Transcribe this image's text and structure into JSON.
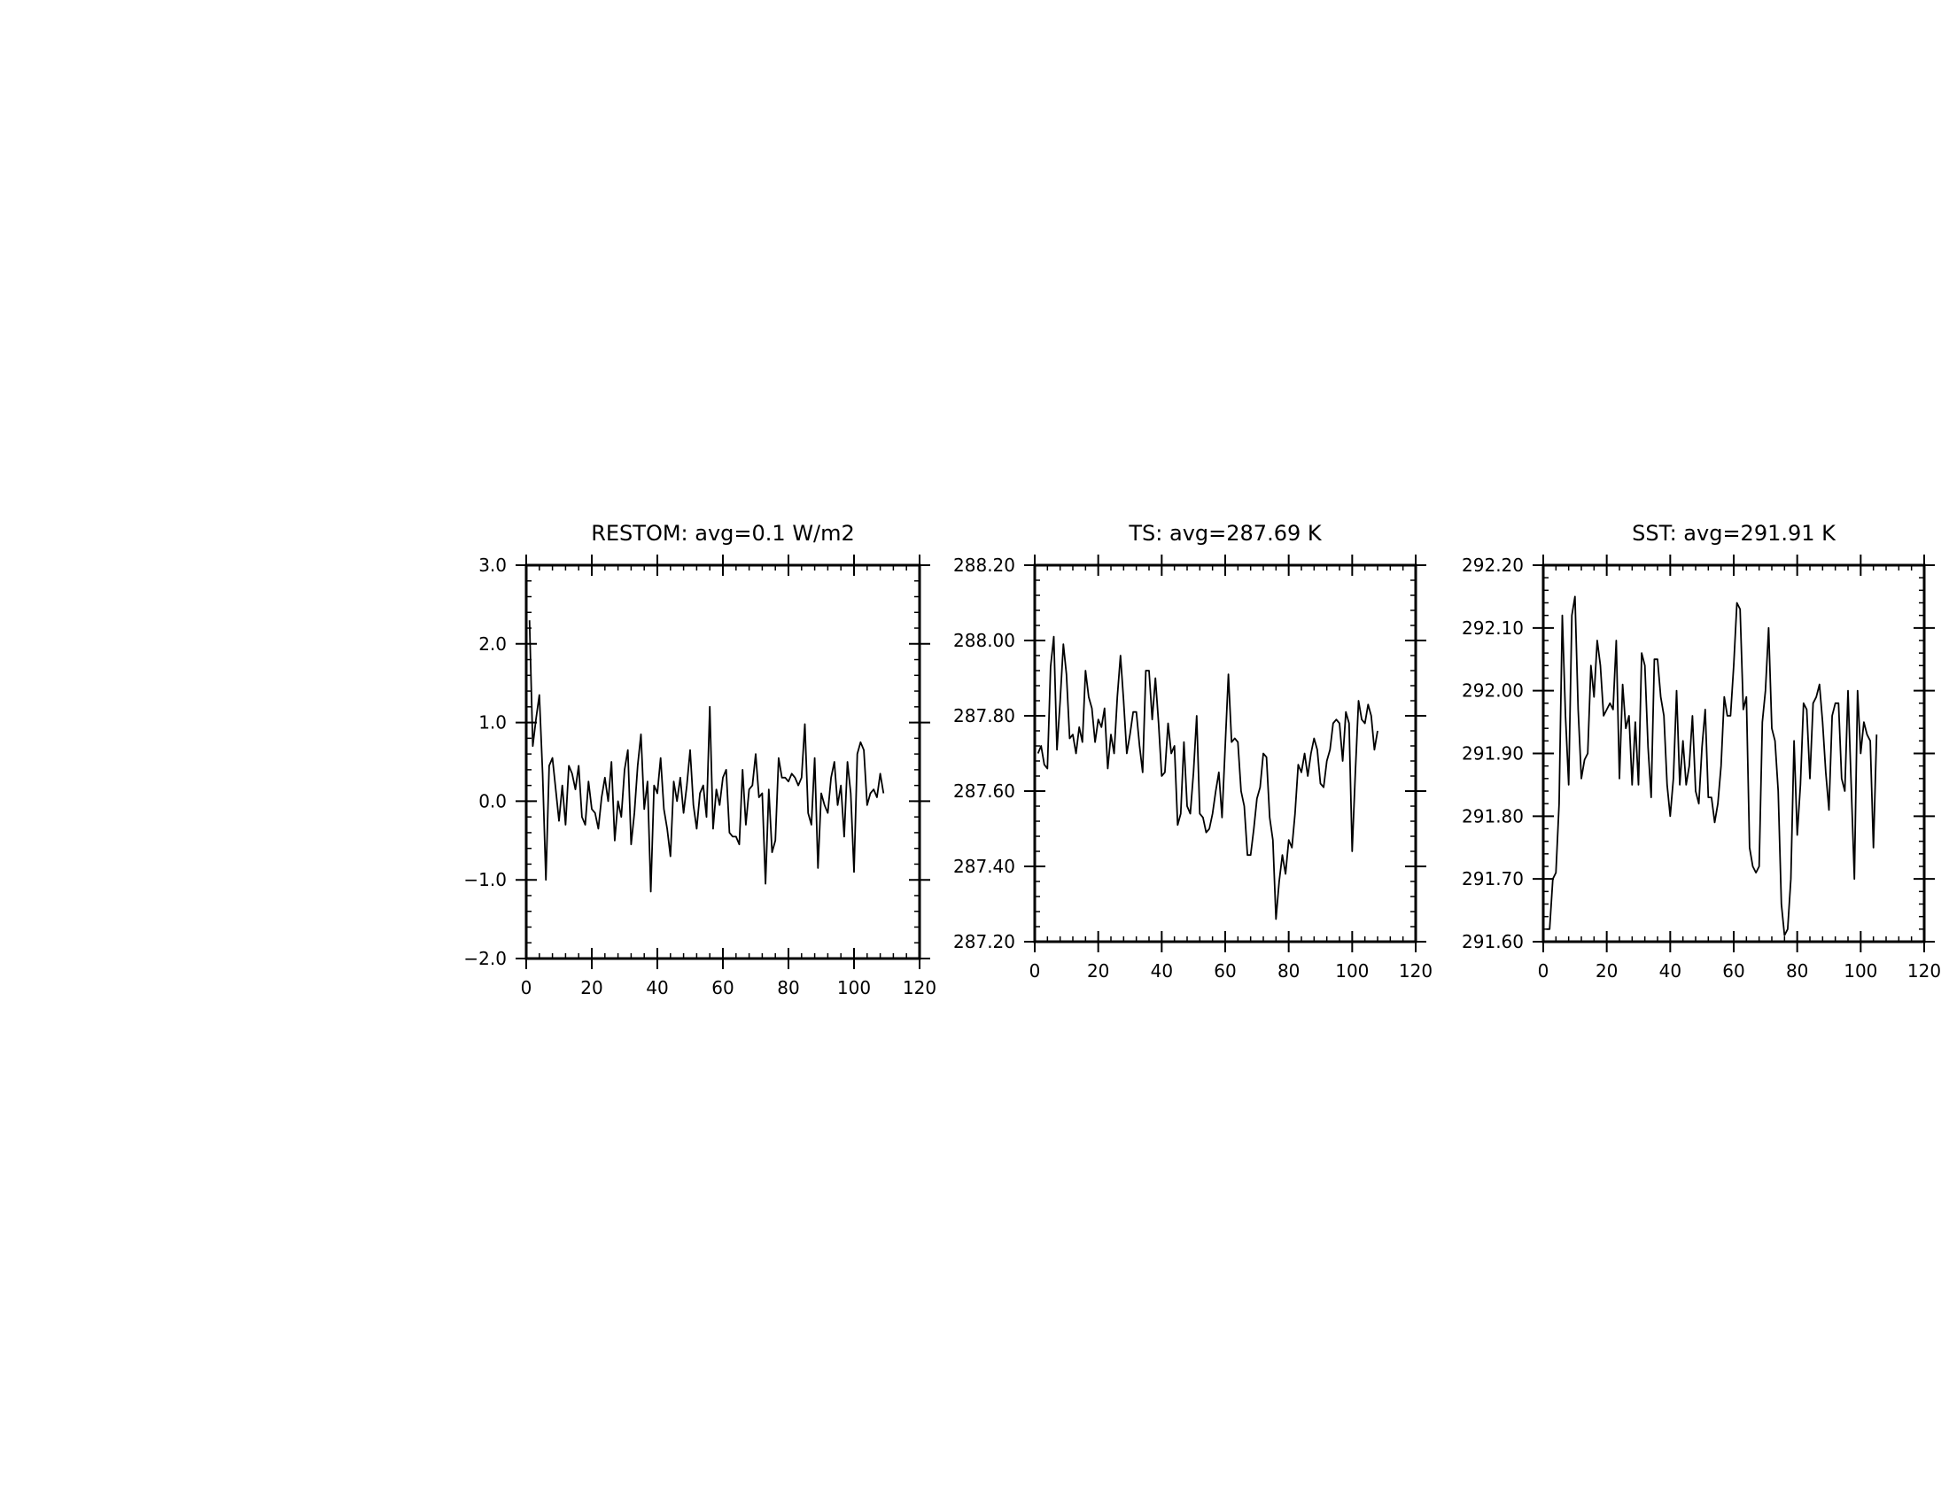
{
  "chart_data": [
    {
      "type": "line",
      "title": "RESTOM: avg=0.1 W/m2",
      "xlabel": "",
      "ylabel": "",
      "xlim": [
        0,
        120
      ],
      "ylim": [
        -2.0,
        3.0
      ],
      "x_ticks": [
        0,
        20,
        40,
        60,
        80,
        100,
        120
      ],
      "x_tick_labels": [
        "0",
        "20",
        "40",
        "60",
        "80",
        "100",
        "120"
      ],
      "y_ticks": [
        -2.0,
        -1.0,
        0.0,
        1.0,
        2.0,
        3.0
      ],
      "y_tick_labels": [
        "−2.0",
        "−1.0",
        "0.0",
        "1.0",
        "2.0",
        "3.0"
      ],
      "grid": false,
      "series": [
        {
          "x_start": 1,
          "x_step": 1,
          "values": [
            2.3,
            0.7,
            1.05,
            1.35,
            0.35,
            -1.0,
            0.45,
            0.55,
            0.15,
            -0.25,
            0.2,
            -0.3,
            0.45,
            0.35,
            0.15,
            0.45,
            -0.2,
            -0.3,
            0.25,
            -0.1,
            -0.15,
            -0.35,
            0.05,
            0.3,
            0.0,
            0.5,
            -0.5,
            0.0,
            -0.2,
            0.4,
            0.65,
            -0.55,
            -0.15,
            0.45,
            0.85,
            -0.1,
            0.25,
            -1.15,
            0.2,
            0.1,
            0.55,
            -0.1,
            -0.35,
            -0.7,
            0.25,
            0.0,
            0.3,
            -0.15,
            0.2,
            0.65,
            -0.05,
            -0.35,
            0.1,
            0.2,
            -0.2,
            1.2,
            -0.35,
            0.15,
            -0.05,
            0.3,
            0.4,
            -0.4,
            -0.45,
            -0.45,
            -0.55,
            0.4,
            -0.3,
            0.15,
            0.2,
            0.6,
            0.05,
            0.1,
            -1.05,
            0.15,
            -0.65,
            -0.5,
            0.55,
            0.3,
            0.3,
            0.25,
            0.35,
            0.3,
            0.2,
            0.3,
            0.98,
            -0.15,
            -0.3,
            0.55,
            -0.85,
            0.1,
            -0.05,
            -0.15,
            0.3,
            0.5,
            -0.05,
            0.2,
            -0.45,
            0.5,
            0.1,
            -0.9,
            0.6,
            0.75,
            0.65,
            -0.05,
            0.1,
            0.15,
            0.05,
            0.35,
            0.1
          ]
        }
      ]
    },
    {
      "type": "line",
      "title": "TS: avg=287.69 K",
      "xlabel": "",
      "ylabel": "",
      "xlim": [
        0,
        120
      ],
      "ylim": [
        287.2,
        288.2
      ],
      "x_ticks": [
        0,
        20,
        40,
        60,
        80,
        100,
        120
      ],
      "x_tick_labels": [
        "0",
        "20",
        "40",
        "60",
        "80",
        "100",
        "120"
      ],
      "y_ticks": [
        287.2,
        287.4,
        287.6,
        287.8,
        288.0,
        288.2
      ],
      "y_tick_labels": [
        "287.20",
        "287.40",
        "287.60",
        "287.80",
        "288.00",
        "288.20"
      ],
      "grid": false,
      "series": [
        {
          "x_start": 1,
          "x_step": 1,
          "values": [
            287.7,
            287.72,
            287.67,
            287.66,
            287.93,
            288.01,
            287.71,
            287.84,
            287.99,
            287.91,
            287.74,
            287.75,
            287.7,
            287.77,
            287.73,
            287.92,
            287.85,
            287.82,
            287.73,
            287.79,
            287.77,
            287.82,
            287.66,
            287.75,
            287.7,
            287.85,
            287.96,
            287.84,
            287.7,
            287.75,
            287.81,
            287.81,
            287.72,
            287.65,
            287.92,
            287.92,
            287.79,
            287.9,
            287.78,
            287.64,
            287.65,
            287.78,
            287.7,
            287.72,
            287.51,
            287.54,
            287.73,
            287.56,
            287.54,
            287.65,
            287.8,
            287.54,
            287.53,
            287.49,
            287.5,
            287.54,
            287.6,
            287.65,
            287.53,
            287.72,
            287.91,
            287.73,
            287.74,
            287.73,
            287.6,
            287.56,
            287.43,
            287.43,
            287.5,
            287.58,
            287.61,
            287.7,
            287.69,
            287.53,
            287.47,
            287.26,
            287.36,
            287.43,
            287.38,
            287.47,
            287.45,
            287.54,
            287.67,
            287.65,
            287.7,
            287.64,
            287.7,
            287.74,
            287.71,
            287.62,
            287.61,
            287.68,
            287.71,
            287.78,
            287.79,
            287.78,
            287.68,
            287.81,
            287.78,
            287.44,
            287.65,
            287.84,
            287.79,
            287.78,
            287.83,
            287.8,
            287.71,
            287.76
          ]
        }
      ]
    },
    {
      "type": "line",
      "title": "SST: avg=291.91 K",
      "xlabel": "",
      "ylabel": "",
      "xlim": [
        0,
        120
      ],
      "ylim": [
        291.6,
        292.2
      ],
      "x_ticks": [
        0,
        20,
        40,
        60,
        80,
        100,
        120
      ],
      "x_tick_labels": [
        "0",
        "20",
        "40",
        "60",
        "80",
        "100",
        "120"
      ],
      "y_ticks": [
        291.6,
        291.7,
        291.8,
        291.9,
        292.0,
        292.1,
        292.2
      ],
      "y_tick_labels": [
        "291.60",
        "291.70",
        "291.80",
        "291.90",
        "292.00",
        "292.10",
        "292.20"
      ],
      "grid": false,
      "series": [
        {
          "x_start": 1,
          "x_step": 1,
          "values": [
            291.62,
            291.62,
            291.7,
            291.71,
            291.82,
            292.12,
            291.96,
            291.85,
            292.12,
            292.15,
            291.97,
            291.86,
            291.89,
            291.9,
            292.04,
            291.99,
            292.08,
            292.04,
            291.96,
            291.97,
            291.98,
            291.97,
            292.08,
            291.86,
            292.01,
            291.94,
            291.96,
            291.85,
            291.95,
            291.85,
            292.06,
            292.04,
            291.91,
            291.83,
            292.05,
            292.05,
            291.99,
            291.96,
            291.85,
            291.8,
            291.86,
            292.0,
            291.85,
            291.92,
            291.85,
            291.88,
            291.96,
            291.84,
            291.82,
            291.91,
            291.97,
            291.83,
            291.83,
            291.79,
            291.82,
            291.88,
            291.99,
            291.96,
            291.96,
            292.04,
            292.14,
            292.13,
            291.97,
            291.99,
            291.75,
            291.72,
            291.71,
            291.72,
            291.95,
            292.0,
            292.1,
            291.94,
            291.92,
            291.84,
            291.66,
            291.61,
            291.62,
            291.7,
            291.92,
            291.77,
            291.85,
            291.98,
            291.97,
            291.86,
            291.98,
            291.99,
            292.01,
            291.95,
            291.87,
            291.81,
            291.96,
            291.98,
            291.98,
            291.86,
            291.84,
            292.0,
            291.85,
            291.7,
            292.0,
            291.9,
            291.95,
            291.93,
            291.92,
            291.75,
            291.93
          ]
        }
      ]
    }
  ]
}
